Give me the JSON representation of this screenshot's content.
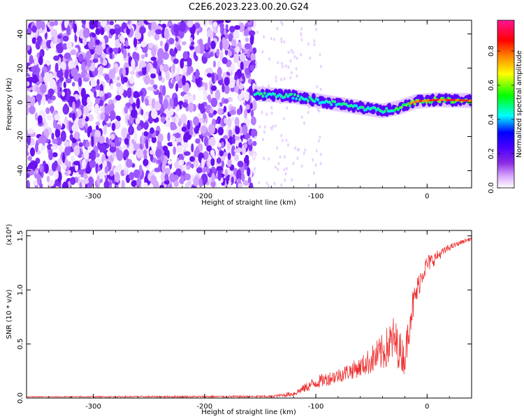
{
  "figure_title": "C2E6.2023.223.00.20.G24",
  "chart_data": [
    {
      "type": "heatmap",
      "xlabel": "Height of straight line (km)",
      "ylabel": "Frequency (Hz)",
      "xlim": [
        -360,
        40
      ],
      "ylim": [
        -50,
        48
      ],
      "x_ticks": [
        "-300",
        "-200",
        "-100",
        "0"
      ],
      "y_ticks": [
        "-40",
        "-20",
        "0",
        "20",
        "40"
      ],
      "colorbar": {
        "label": "Normalized spectral amplitude",
        "range": [
          0.0,
          0.98
        ],
        "ticks": [
          "0.0",
          "0.2",
          "0.4",
          "0.6",
          "0.8"
        ],
        "colors": [
          "#ffffff",
          "#d9a6ff",
          "#8a2be2",
          "#4b00ff",
          "#0000ff",
          "#00ffff",
          "#00ff00",
          "#ffff00",
          "#ff8c00",
          "#ff0000",
          "#ff1493"
        ]
      },
      "description_points": {
        "noise_region_x": [
          -360,
          -155
        ],
        "signal_track": [
          {
            "x": -155,
            "f": 5.0
          },
          {
            "x": -120,
            "f": 3.5
          },
          {
            "x": -90,
            "f": 0.0
          },
          {
            "x": -60,
            "f": -3.0
          },
          {
            "x": -40,
            "f": -5.0
          },
          {
            "x": -25,
            "f": -3.0
          },
          {
            "x": -10,
            "f": 0.5
          },
          {
            "x": 10,
            "f": 1.5
          },
          {
            "x": 40,
            "f": 1.0
          }
        ]
      }
    },
    {
      "type": "line",
      "xlabel": "Height of straight line (km)",
      "ylabel": "SNR (10 * v/v)",
      "y_multiplier": "(x10⁴)",
      "xlim": [
        -360,
        40
      ],
      "ylim": [
        0.0,
        1.55
      ],
      "x_ticks": [
        "-300",
        "-200",
        "-100",
        "0"
      ],
      "y_ticks": [
        "0.0",
        "0.5",
        "1.0",
        "1.5"
      ],
      "color": "#ee3333",
      "envelope": {
        "x": [
          -360,
          -140,
          -120,
          -100,
          -80,
          -60,
          -40,
          -30,
          -20,
          -15,
          -5,
          0,
          10,
          20,
          30,
          40
        ],
        "base": [
          0.01,
          0.01,
          0.03,
          0.12,
          0.18,
          0.25,
          0.35,
          0.45,
          0.3,
          0.7,
          1.1,
          1.2,
          1.3,
          1.38,
          1.43,
          1.47
        ],
        "amp": [
          0.008,
          0.02,
          0.05,
          0.12,
          0.14,
          0.18,
          0.35,
          0.45,
          0.3,
          0.35,
          0.2,
          0.18,
          0.1,
          0.06,
          0.04,
          0.03
        ]
      }
    }
  ]
}
